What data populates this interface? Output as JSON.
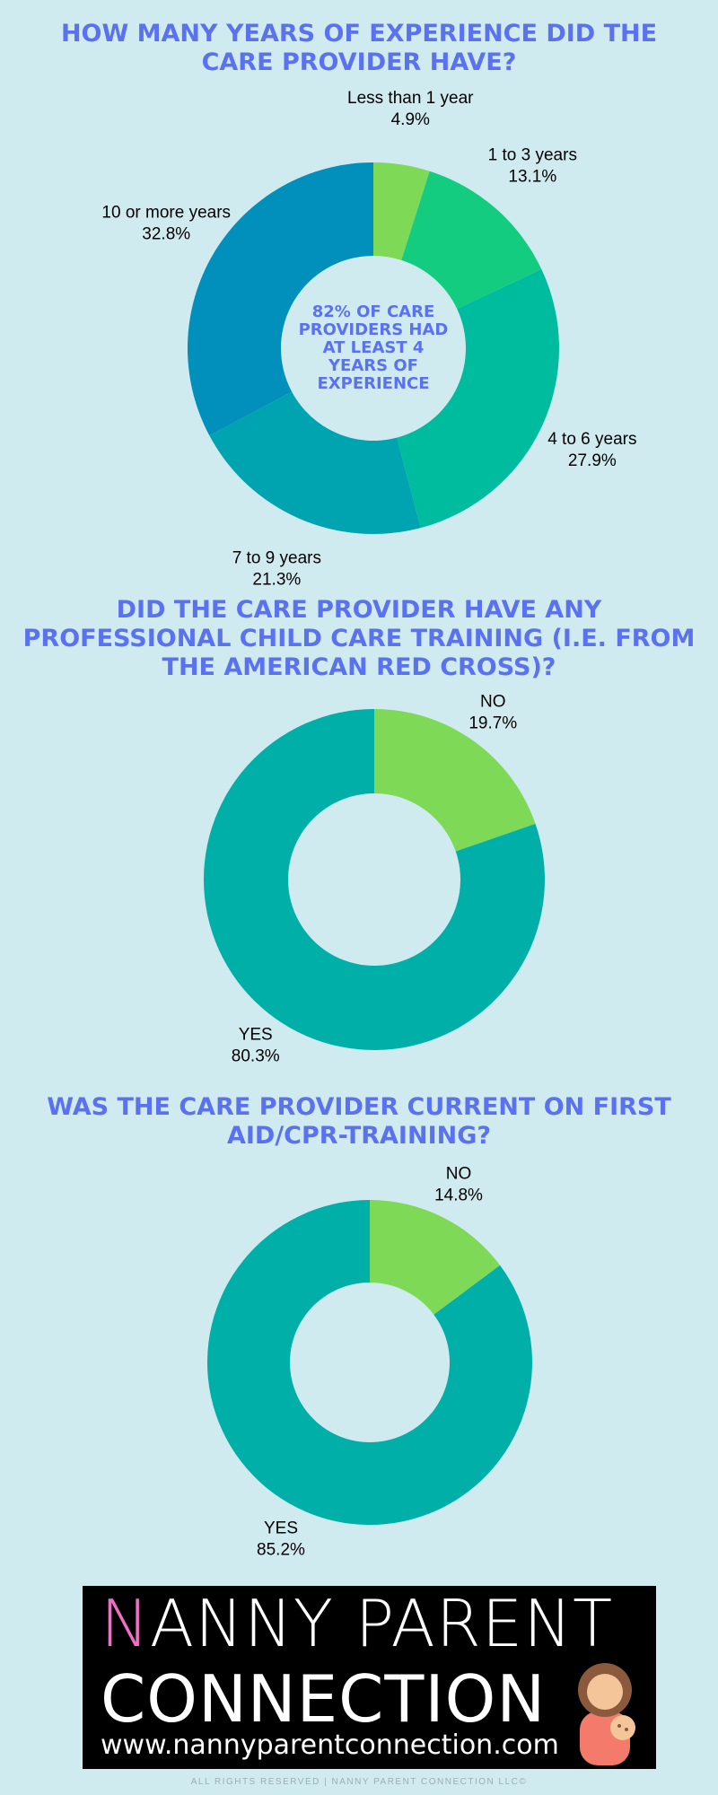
{
  "chart_data": [
    {
      "type": "donut",
      "title": "HOW MANY YEARS OF EXPERIENCE DID THE CARE PROVIDER HAVE?",
      "center_text": "82% OF CARE PROVIDERS HAD AT LEAST 4 YEARS OF EXPERIENCE",
      "categories": [
        "Less than 1 year",
        "1 to 3 years",
        "4 to 6 years",
        "7 to 9 years",
        "10 or more years"
      ],
      "values": [
        4.9,
        13.1,
        27.9,
        21.3,
        32.8
      ],
      "value_labels": [
        "4.9%",
        "13.1%",
        "27.9%",
        "21.3%",
        "32.8%"
      ],
      "colors": [
        "#7ed957",
        "#14cc7f",
        "#00bc9e",
        "#00a4b0",
        "#0090bb"
      ]
    },
    {
      "type": "donut",
      "title": "DID THE CARE PROVIDER HAVE ANY PROFESSIONAL CHILD CARE TRAINING (I.E. FROM THE AMERICAN RED CROSS)?",
      "categories": [
        "NO",
        "YES"
      ],
      "values": [
        19.7,
        80.3
      ],
      "value_labels": [
        "19.7%",
        "80.3%"
      ],
      "colors": [
        "#7ed957",
        "#00b0a8"
      ]
    },
    {
      "type": "donut",
      "title": "WAS THE CARE PROVIDER CURRENT ON FIRST AID/CPR-TRAINING?",
      "categories": [
        "NO",
        "YES"
      ],
      "values": [
        14.8,
        85.2
      ],
      "value_labels": [
        "14.8%",
        "85.2%"
      ],
      "colors": [
        "#7ed957",
        "#00b0a8"
      ]
    }
  ],
  "logo": {
    "line1": "NANNY PARENT",
    "line2": "CONNECTION",
    "url": "www.nannyparentconnection.com"
  },
  "footer": "ALL RIGHTS RESERVED | NANNY PARENT CONNECTION LLC©"
}
